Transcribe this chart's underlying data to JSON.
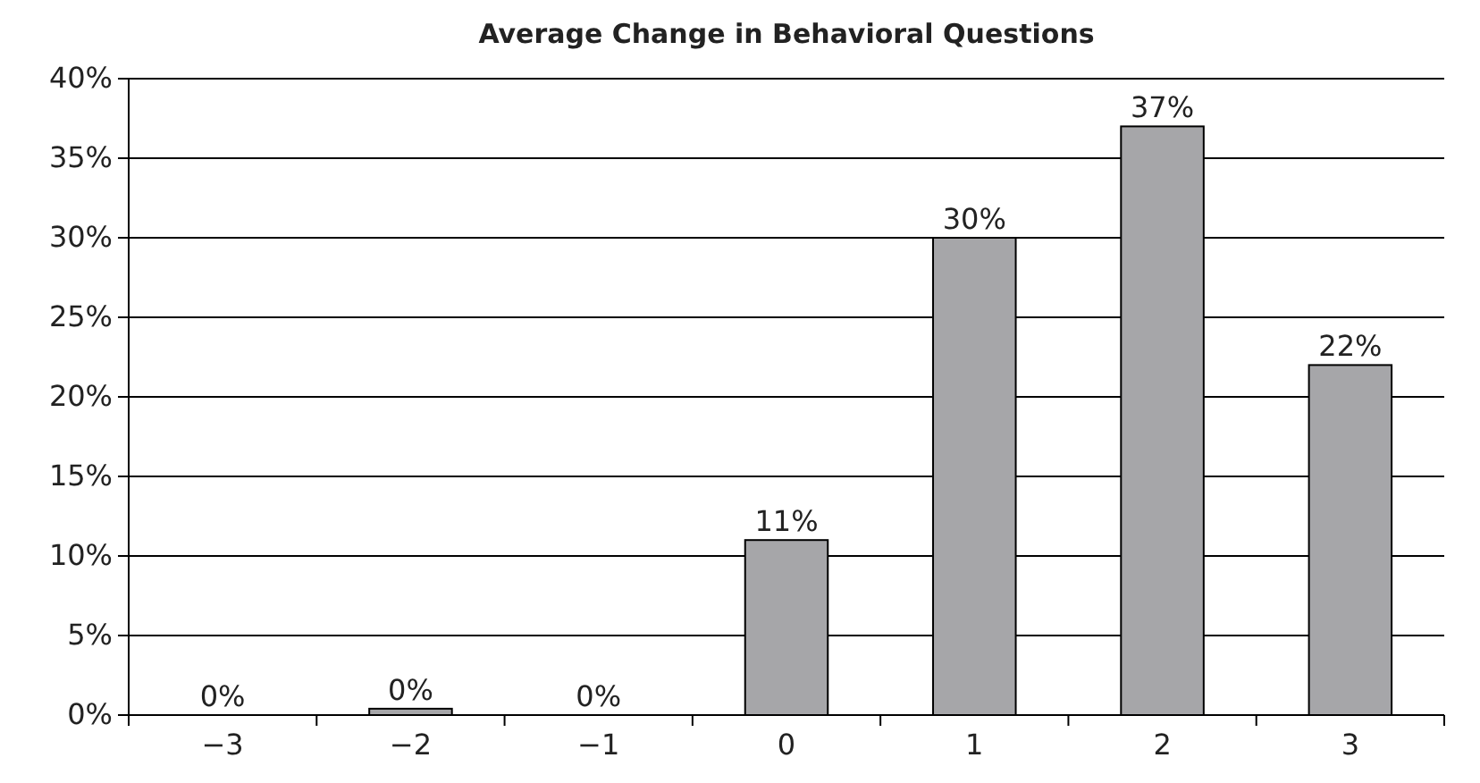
{
  "chart_data": {
    "type": "bar",
    "title": "Average Change in Behavioral Questions",
    "categories": [
      "−3",
      "−2",
      "−1",
      "0",
      "1",
      "2",
      "3"
    ],
    "values": [
      0,
      0.4,
      0,
      11,
      30,
      37,
      22
    ],
    "value_labels": [
      "0%",
      "0%",
      "0%",
      "11%",
      "30%",
      "37%",
      "22%"
    ],
    "color": "#a6a6a9",
    "ylim": [
      0,
      40
    ],
    "yticks": [
      {
        "value": 0,
        "label": "0%"
      },
      {
        "value": 5,
        "label": "5%"
      },
      {
        "value": 10,
        "label": "10%"
      },
      {
        "value": 15,
        "label": "15%"
      },
      {
        "value": 20,
        "label": "20%"
      },
      {
        "value": 25,
        "label": "25%"
      },
      {
        "value": 30,
        "label": "30%"
      },
      {
        "value": 35,
        "label": "35%"
      },
      {
        "value": 40,
        "label": "40%"
      }
    ],
    "grid": "y"
  }
}
